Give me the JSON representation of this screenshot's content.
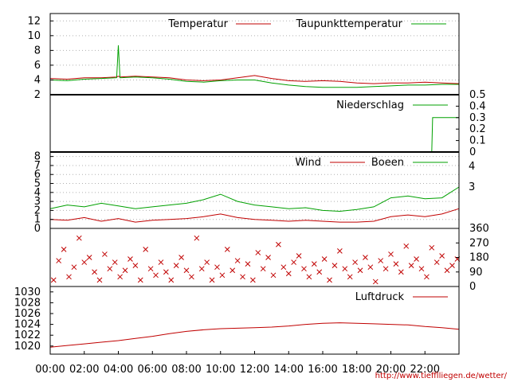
{
  "colors": {
    "red": "#c00000",
    "green": "#00a000",
    "grid": "#b0b0b0",
    "frame": "#000000"
  },
  "credit": "http://www.tiefflliegen.de/wetter/",
  "x_tick_labels": [
    "00:00",
    "02:00",
    "04:00",
    "06:00",
    "08:00",
    "10:00",
    "12:00",
    "14:00",
    "16:00",
    "18:00",
    "20:00",
    "22:00"
  ],
  "chart_data": [
    {
      "id": "temperature",
      "type": "line",
      "x_unit": "hours",
      "xlim": [
        0,
        24
      ],
      "ylim": [
        2,
        13
      ],
      "y_ticks": [
        2,
        4,
        6,
        8,
        10,
        12
      ],
      "grid": true,
      "legend": "top",
      "series": [
        {
          "name": "Temperatur",
          "color": "#c00000",
          "x": [
            0,
            1,
            2,
            3,
            3.9,
            4,
            4.1,
            5,
            6,
            7,
            8,
            9,
            10,
            11,
            12,
            13,
            14,
            15,
            16,
            17,
            18,
            19,
            20,
            21,
            22,
            23,
            24
          ],
          "y": [
            4.2,
            4.1,
            4.3,
            4.3,
            4.4,
            4.5,
            4.4,
            4.5,
            4.4,
            4.3,
            4.0,
            3.9,
            4.0,
            4.3,
            4.6,
            4.2,
            3.9,
            3.8,
            3.9,
            3.8,
            3.6,
            3.5,
            3.6,
            3.6,
            3.7,
            3.6,
            3.5
          ]
        },
        {
          "name": "Taupunkttemperatur",
          "color": "#00a000",
          "x": [
            0,
            1,
            2,
            3,
            3.9,
            4,
            4.1,
            5,
            6,
            7,
            8,
            9,
            10,
            11,
            12,
            13,
            14,
            15,
            16,
            17,
            18,
            19,
            20,
            21,
            22,
            23,
            24
          ],
          "y": [
            4.0,
            3.9,
            4.1,
            4.2,
            4.3,
            8.7,
            4.3,
            4.4,
            4.3,
            4.1,
            3.8,
            3.7,
            3.9,
            4.0,
            4.0,
            3.6,
            3.3,
            3.1,
            3.0,
            3.0,
            3.0,
            3.1,
            3.2,
            3.3,
            3.3,
            3.4,
            3.4
          ]
        }
      ]
    },
    {
      "id": "precipitation",
      "type": "line",
      "x_unit": "hours",
      "xlim": [
        0,
        24
      ],
      "ylim": [
        0,
        0.5
      ],
      "y_ticks": [
        "0",
        "0.1",
        "0.2",
        "0.3",
        "0.4",
        "0.5"
      ],
      "y_axis": "right",
      "legend": "top-right",
      "series": [
        {
          "name": "Niederschlag",
          "color": "#00a000",
          "x": [
            0,
            22.4,
            22.45,
            22.5,
            24
          ],
          "y": [
            0,
            0,
            0.3,
            0.3,
            0.3
          ]
        }
      ]
    },
    {
      "id": "wind",
      "type": "line",
      "x_unit": "hours",
      "xlim": [
        0,
        24
      ],
      "ylim": [
        0,
        8.5
      ],
      "y_ticks": [
        0,
        1,
        2,
        3,
        4,
        5,
        6,
        7,
        8
      ],
      "right_labels": [
        "3",
        "4"
      ],
      "grid": true,
      "legend": "top",
      "series": [
        {
          "name": "Wind",
          "color": "#c00000",
          "x": [
            0,
            1,
            2,
            3,
            4,
            5,
            6,
            7,
            8,
            9,
            10,
            11,
            12,
            13,
            14,
            15,
            16,
            17,
            18,
            19,
            20,
            21,
            22,
            23,
            24
          ],
          "y": [
            1.0,
            0.9,
            1.2,
            0.8,
            1.1,
            0.7,
            0.9,
            1.0,
            1.1,
            1.3,
            1.6,
            1.2,
            1.0,
            0.9,
            0.8,
            0.9,
            0.8,
            0.7,
            0.7,
            0.8,
            1.3,
            1.5,
            1.3,
            1.6,
            2.2
          ]
        },
        {
          "name": "Boeen",
          "color": "#00a000",
          "x": [
            0,
            1,
            2,
            3,
            4,
            5,
            6,
            7,
            8,
            9,
            10,
            11,
            12,
            13,
            14,
            15,
            16,
            17,
            18,
            19,
            20,
            21,
            22,
            23,
            24
          ],
          "y": [
            2.2,
            2.6,
            2.4,
            2.8,
            2.5,
            2.2,
            2.4,
            2.6,
            2.8,
            3.2,
            3.8,
            3.0,
            2.6,
            2.4,
            2.2,
            2.3,
            2.0,
            1.9,
            2.1,
            2.4,
            3.4,
            3.6,
            3.3,
            3.4,
            4.6
          ]
        }
      ]
    },
    {
      "id": "wind_direction",
      "type": "scatter",
      "x_unit": "hours",
      "xlim": [
        0,
        24
      ],
      "ylim": [
        0,
        360
      ],
      "y_ticks": [
        "0",
        "90",
        "180",
        "270",
        "360"
      ],
      "y_axis": "right",
      "series": [
        {
          "color": "#c00000",
          "marker": "x",
          "x": [
            0.2,
            0.5,
            0.8,
            1.1,
            1.4,
            1.7,
            2.0,
            2.3,
            2.6,
            2.9,
            3.2,
            3.5,
            3.8,
            4.1,
            4.4,
            4.7,
            5.0,
            5.3,
            5.6,
            5.9,
            6.2,
            6.5,
            6.8,
            7.1,
            7.4,
            7.7,
            8.0,
            8.3,
            8.6,
            8.9,
            9.2,
            9.5,
            9.8,
            10.1,
            10.4,
            10.7,
            11.0,
            11.3,
            11.6,
            11.9,
            12.2,
            12.5,
            12.8,
            13.1,
            13.4,
            13.7,
            14.0,
            14.3,
            14.6,
            14.9,
            15.2,
            15.5,
            15.8,
            16.1,
            16.4,
            16.7,
            17.0,
            17.3,
            17.6,
            17.9,
            18.2,
            18.5,
            18.8,
            19.1,
            19.4,
            19.7,
            20.0,
            20.3,
            20.6,
            20.9,
            21.2,
            21.5,
            21.8,
            22.1,
            22.4,
            22.7,
            23.0,
            23.3,
            23.6,
            23.9
          ],
          "y": [
            40,
            160,
            230,
            60,
            120,
            300,
            150,
            180,
            90,
            40,
            200,
            110,
            150,
            60,
            100,
            170,
            130,
            40,
            230,
            110,
            70,
            150,
            90,
            40,
            130,
            180,
            100,
            60,
            300,
            110,
            150,
            40,
            120,
            70,
            230,
            100,
            160,
            60,
            140,
            40,
            210,
            110,
            180,
            70,
            260,
            120,
            80,
            150,
            190,
            110,
            60,
            140,
            90,
            170,
            40,
            130,
            220,
            110,
            60,
            150,
            100,
            180,
            120,
            30,
            160,
            110,
            200,
            140,
            90,
            250,
            130,
            170,
            110,
            60,
            240,
            150,
            190,
            100,
            130,
            170
          ]
        }
      ]
    },
    {
      "id": "pressure",
      "type": "line",
      "x_unit": "hours",
      "xlim": [
        0,
        24
      ],
      "ylim": [
        1018.5,
        1031
      ],
      "y_ticks": [
        1020,
        1022,
        1024,
        1026,
        1028,
        1030
      ],
      "legend": "top-right",
      "series": [
        {
          "name": "Luftdruck",
          "color": "#c00000",
          "x": [
            0,
            1,
            2,
            3,
            4,
            5,
            6,
            7,
            8,
            9,
            10,
            11,
            12,
            13,
            14,
            15,
            16,
            17,
            18,
            19,
            20,
            21,
            22,
            23,
            24
          ],
          "y": [
            1019.8,
            1020.1,
            1020.4,
            1020.7,
            1021.0,
            1021.4,
            1021.8,
            1022.3,
            1022.7,
            1023.0,
            1023.2,
            1023.3,
            1023.4,
            1023.5,
            1023.7,
            1024.0,
            1024.2,
            1024.3,
            1024.2,
            1024.1,
            1024.0,
            1023.9,
            1023.6,
            1023.4,
            1023.1
          ]
        }
      ]
    }
  ]
}
